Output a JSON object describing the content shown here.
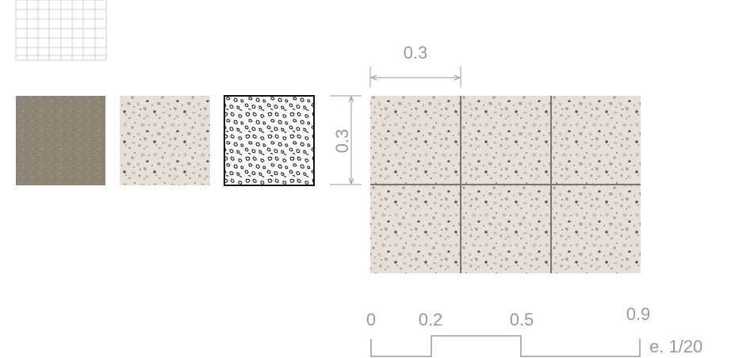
{
  "tile_dimensions": {
    "width_label": "0.3",
    "height_label": "0.3"
  },
  "scale_bar": {
    "ticks": [
      "0",
      "0.2",
      "0.5",
      "0.9"
    ],
    "scale_label": "e. 1/20"
  },
  "colors": {
    "tile_base": "#e5dfd8",
    "chip_light": "#c5bfb9",
    "chip_mid": "#a9a39d",
    "chip_dark": "#5a5550",
    "grout": "#7a7570",
    "annotation": "#9a9a9a",
    "photo_base": "#8e8576",
    "grid_line": "#d0d0d0"
  },
  "icons": [
    "grid-pattern-icon",
    "photo-texture-swatch",
    "terrazzo-swatch",
    "terrazzo-hatch-swatch"
  ]
}
